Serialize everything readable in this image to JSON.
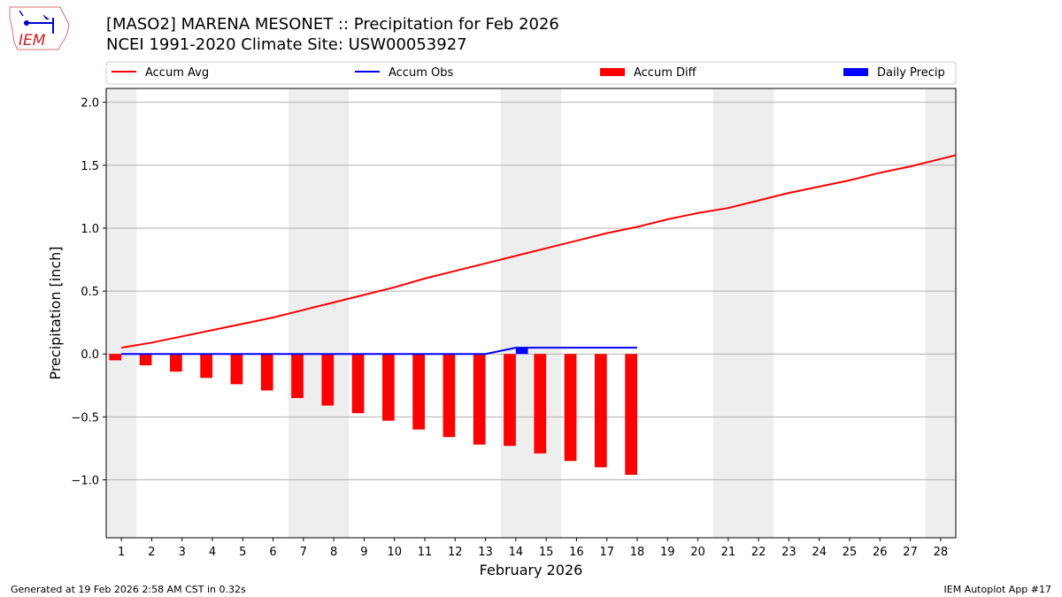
{
  "header": {
    "title_line1": "[MASO2] MARENA MESONET :: Precipitation for Feb 2026",
    "title_line2": "NCEI 1991-2020 Climate Site: USW00053927",
    "logo_text": "IEM"
  },
  "footer": {
    "left": "Generated at 19 Feb 2026 2:58 AM CST in 0.32s",
    "right": "IEM Autoplot App #17"
  },
  "chart_data": {
    "type": "bar",
    "title": "[MASO2] MARENA MESONET :: Precipitation for Feb 2026",
    "xlabel": "February 2026",
    "ylabel": "Precipitation [inch]",
    "xlim": [
      0.5,
      28.5
    ],
    "ylim": [
      -1.46,
      2.11
    ],
    "yticks": [
      -1.0,
      -0.5,
      0.0,
      0.5,
      1.0,
      1.5,
      2.0
    ],
    "ytick_labels": [
      "−1.0",
      "−0.5",
      "0.0",
      "0.5",
      "1.0",
      "1.5",
      "2.0"
    ],
    "xticks": [
      1,
      2,
      3,
      4,
      5,
      6,
      7,
      8,
      9,
      10,
      11,
      12,
      13,
      14,
      15,
      16,
      17,
      18,
      19,
      20,
      21,
      22,
      23,
      24,
      25,
      26,
      27,
      28
    ],
    "grid": "horizontal",
    "legend_placement": "top",
    "weekend_shading": [
      [
        0.5,
        1.5
      ],
      [
        6.5,
        8.5
      ],
      [
        13.5,
        15.5
      ],
      [
        20.5,
        22.5
      ],
      [
        27.5,
        28.5
      ]
    ],
    "series": [
      {
        "name": "Accum Avg",
        "kind": "line",
        "color": "#ff0000",
        "x": [
          1,
          2,
          3,
          4,
          5,
          6,
          7,
          8,
          9,
          10,
          11,
          12,
          13,
          14,
          15,
          16,
          17,
          18,
          19,
          20,
          21,
          22,
          23,
          24,
          25,
          26,
          27,
          28,
          28.5
        ],
        "values": [
          0.05,
          0.09,
          0.14,
          0.19,
          0.24,
          0.29,
          0.35,
          0.41,
          0.47,
          0.53,
          0.6,
          0.66,
          0.72,
          0.78,
          0.84,
          0.9,
          0.96,
          1.01,
          1.07,
          1.12,
          1.16,
          1.22,
          1.28,
          1.33,
          1.38,
          1.44,
          1.49,
          1.55,
          1.58
        ]
      },
      {
        "name": "Accum Obs",
        "kind": "line",
        "color": "#0000ff",
        "x": [
          1,
          2,
          3,
          4,
          5,
          6,
          7,
          8,
          9,
          10,
          11,
          12,
          13,
          14,
          15,
          16,
          17,
          18
        ],
        "values": [
          0,
          0,
          0,
          0,
          0,
          0,
          0,
          0,
          0,
          0,
          0,
          0,
          0,
          0.05,
          0.05,
          0.05,
          0.05,
          0.05
        ]
      },
      {
        "name": "Accum Diff",
        "kind": "bar",
        "color": "#ff0000",
        "x": [
          1,
          2,
          3,
          4,
          5,
          6,
          7,
          8,
          9,
          10,
          11,
          12,
          13,
          14,
          15,
          16,
          17,
          18
        ],
        "values": [
          -0.05,
          -0.09,
          -0.14,
          -0.19,
          -0.24,
          -0.29,
          -0.35,
          -0.41,
          -0.47,
          -0.53,
          -0.6,
          -0.66,
          -0.72,
          -0.73,
          -0.79,
          -0.85,
          -0.9,
          -0.96
        ]
      },
      {
        "name": "Daily Precip",
        "kind": "bar",
        "color": "#0000ff",
        "x": [
          14
        ],
        "values": [
          0.05
        ]
      }
    ]
  }
}
